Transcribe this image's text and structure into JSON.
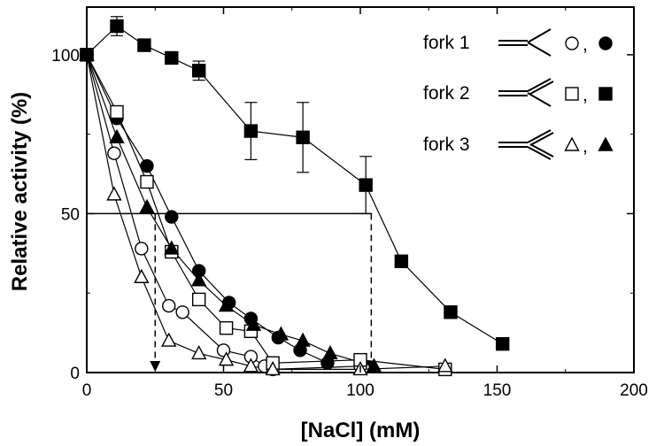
{
  "chart_data": {
    "type": "scatter",
    "xlabel": "[NaCl] (mM)",
    "ylabel": "Relative activity (%)",
    "xlim": [
      0,
      200
    ],
    "ylim": [
      0,
      115
    ],
    "xticks": [
      0,
      50,
      100,
      150,
      200
    ],
    "yticks": [
      0,
      50,
      100
    ],
    "grid": false,
    "legend_position": "top-right",
    "series": [
      {
        "name": "fork 1",
        "marker": "circle",
        "filled": false,
        "x": [
          0,
          10,
          20,
          30,
          35,
          50,
          60,
          65,
          68,
          100
        ],
        "y": [
          100,
          69,
          39,
          21,
          19,
          7,
          5,
          2,
          1,
          2
        ]
      },
      {
        "name": "fork 1",
        "marker": "circle",
        "filled": true,
        "x": [
          0,
          11,
          22,
          31,
          41,
          52,
          60,
          70,
          78,
          88
        ],
        "y": [
          100,
          80,
          65,
          49,
          32,
          22,
          17,
          11,
          7,
          3
        ]
      },
      {
        "name": "fork 2",
        "marker": "square",
        "filled": false,
        "x": [
          0,
          11,
          22,
          31,
          41,
          51,
          60,
          68,
          100,
          131
        ],
        "y": [
          100,
          82,
          60,
          38,
          23,
          14,
          13,
          3,
          4,
          1
        ]
      },
      {
        "name": "fork 2",
        "marker": "square",
        "filled": true,
        "x": [
          0,
          11,
          21,
          31,
          41,
          60,
          79,
          102,
          115,
          133,
          152
        ],
        "y": [
          100,
          109,
          103,
          99,
          95,
          76,
          74,
          59,
          35,
          19,
          9
        ],
        "err": [
          0,
          3,
          0,
          0,
          3,
          9,
          11,
          9,
          0,
          0,
          0
        ]
      },
      {
        "name": "fork 3",
        "marker": "triangle",
        "filled": false,
        "x": [
          0,
          10,
          20,
          30,
          41,
          51,
          60,
          68,
          100,
          131
        ],
        "y": [
          100,
          56,
          30,
          10,
          6,
          4,
          2,
          1,
          1,
          2
        ]
      },
      {
        "name": "fork 3",
        "marker": "triangle",
        "filled": true,
        "x": [
          0,
          11,
          22,
          31,
          41,
          51,
          61,
          71,
          79,
          89,
          105
        ],
        "y": [
          100,
          74,
          52,
          39,
          29,
          21,
          15,
          12,
          10,
          6,
          2
        ]
      }
    ],
    "reference_lines": {
      "y_half": 50,
      "x_left_marker": 25,
      "x_right_marker": 104
    },
    "legend": [
      {
        "label": "fork 1",
        "separator": ","
      },
      {
        "label": "fork 2",
        "separator": ","
      },
      {
        "label": "fork 3",
        "separator": ","
      }
    ]
  }
}
